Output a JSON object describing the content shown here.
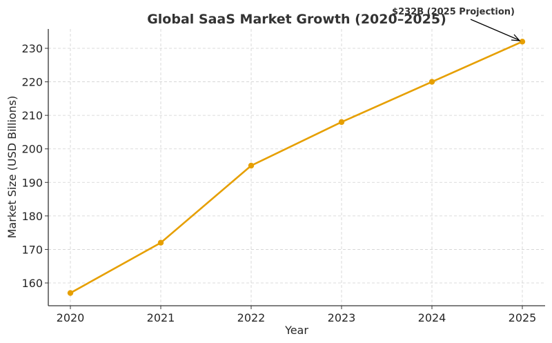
{
  "chart_data": {
    "type": "line",
    "title": "Global SaaS Market Growth (2020–2025)",
    "xlabel": "Year",
    "ylabel": "Market Size (USD Billions)",
    "categories": [
      "2020",
      "2021",
      "2022",
      "2023",
      "2024",
      "2025"
    ],
    "series": [
      {
        "name": "Market Size",
        "values": [
          157,
          172,
          195,
          208,
          220,
          232
        ],
        "color": "#E69F00"
      }
    ],
    "yticks": [
      160,
      170,
      180,
      190,
      200,
      210,
      220,
      230
    ],
    "ylim": [
      153,
      236
    ],
    "grid": true,
    "annotation": {
      "text": "$232B (2025 Projection)",
      "target": {
        "x": "2025",
        "y": 232
      }
    }
  }
}
